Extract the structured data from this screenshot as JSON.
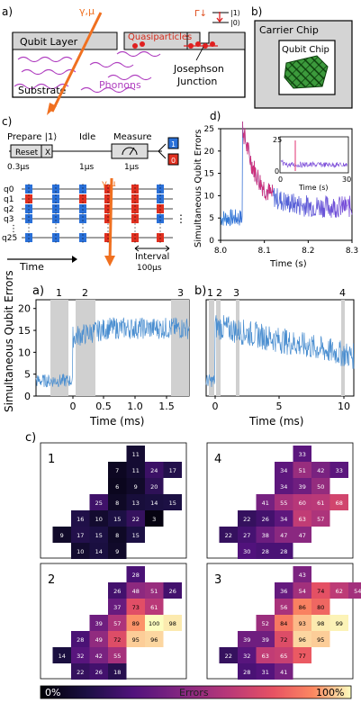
{
  "panel_a": {
    "letter": "a)",
    "source_label": "γ,μ",
    "qubit_layer": "Qubit Layer",
    "substrate": "Substrate",
    "quasiparticles": "Quasiparticles",
    "phonons": "Phonons",
    "junction": [
      "Josephson",
      "Junction"
    ],
    "gamma_down": "Γ↓",
    "level1": "|1⟩",
    "level0": "|0⟩"
  },
  "panel_b": {
    "letter": "b)",
    "carrier": "Carrier Chip",
    "qubit_chip": "Qubit Chip"
  },
  "panel_c": {
    "letter": "c)",
    "steps": [
      "Prepare |1⟩",
      "Idle",
      "Measure"
    ],
    "reset": "Reset",
    "x_gate": "X",
    "times": [
      "0.3μs",
      "1μs",
      "1μs"
    ],
    "out1": "1",
    "out0": "0",
    "source_label": "γ,μ",
    "qubits": [
      "q0",
      "q1",
      "q2",
      "q3",
      "q25"
    ],
    "interval": "Interval",
    "interval_value": "100μs",
    "time": "Time"
  },
  "panel_d": {
    "letter": "d)",
    "ylabel": "Simultaneous Qubit Errors",
    "xlabel": "Time (s)",
    "xticks": [
      "8.0",
      "8.1",
      "8.2",
      "8.3"
    ],
    "yticks": [
      "0",
      "5",
      "10",
      "15",
      "20",
      "25"
    ],
    "inset_xticks": [
      "0",
      "30"
    ],
    "inset_yticks": [
      "0",
      "25"
    ],
    "inset_xlabel": "Time (s)"
  },
  "panel_a2": {
    "letter": "a)",
    "xticks": [
      "0",
      "0.5",
      "1.0",
      "1.5"
    ],
    "yticks": [
      "0",
      "5",
      "10",
      "15",
      "20"
    ],
    "xlabel": "Time (ms)",
    "markers": [
      "1",
      "2",
      "3"
    ]
  },
  "panel_b2": {
    "letter": "b)",
    "xticks": [
      "0",
      "5",
      "10"
    ],
    "xlabel": "Time (ms)",
    "markers": [
      "1",
      "2",
      "3",
      "4"
    ]
  },
  "shared_ylabel": "Simultaneous Qubit Errors",
  "panel_c2": {
    "letter": "c)",
    "maps": [
      {
        "label": "1",
        "cells": [
          [
            0,
            3,
            "11"
          ],
          [
            1,
            2,
            "7"
          ],
          [
            1,
            3,
            "11"
          ],
          [
            1,
            4,
            "24"
          ],
          [
            1,
            5,
            "17"
          ],
          [
            2,
            2,
            "6"
          ],
          [
            2,
            3,
            "9"
          ],
          [
            2,
            4,
            "20"
          ],
          [
            3,
            1,
            "25"
          ],
          [
            3,
            2,
            "8"
          ],
          [
            3,
            3,
            "13"
          ],
          [
            3,
            4,
            "14"
          ],
          [
            3,
            5,
            "15"
          ],
          [
            4,
            0,
            "16"
          ],
          [
            4,
            1,
            "10"
          ],
          [
            4,
            2,
            "15"
          ],
          [
            4,
            3,
            "22"
          ],
          [
            4,
            4,
            "3"
          ],
          [
            5,
            -1,
            "9"
          ],
          [
            5,
            0,
            "17"
          ],
          [
            5,
            1,
            "15"
          ],
          [
            5,
            2,
            "8"
          ],
          [
            5,
            3,
            "15"
          ],
          [
            6,
            0,
            "10"
          ],
          [
            6,
            1,
            "14"
          ],
          [
            6,
            2,
            "9"
          ]
        ]
      },
      {
        "label": "4",
        "cells": [
          [
            0,
            3,
            "33"
          ],
          [
            1,
            2,
            "34"
          ],
          [
            1,
            3,
            "51"
          ],
          [
            1,
            4,
            "42"
          ],
          [
            1,
            5,
            "33"
          ],
          [
            2,
            2,
            "34"
          ],
          [
            2,
            3,
            "39"
          ],
          [
            2,
            4,
            "50"
          ],
          [
            3,
            1,
            "41"
          ],
          [
            3,
            2,
            "55"
          ],
          [
            3,
            3,
            "60"
          ],
          [
            3,
            4,
            "61"
          ],
          [
            3,
            5,
            "68"
          ],
          [
            4,
            0,
            "22"
          ],
          [
            4,
            1,
            "26"
          ],
          [
            4,
            2,
            "34"
          ],
          [
            4,
            3,
            "63"
          ],
          [
            4,
            4,
            "57"
          ],
          [
            5,
            -1,
            "22"
          ],
          [
            5,
            0,
            "27"
          ],
          [
            5,
            1,
            "38"
          ],
          [
            5,
            2,
            "47"
          ],
          [
            5,
            3,
            "47"
          ],
          [
            6,
            0,
            "30"
          ],
          [
            6,
            1,
            "28"
          ],
          [
            6,
            2,
            "28"
          ]
        ]
      },
      {
        "label": "2",
        "cells": [
          [
            0,
            3,
            "28"
          ],
          [
            1,
            2,
            "26"
          ],
          [
            1,
            3,
            "48"
          ],
          [
            1,
            4,
            "51"
          ],
          [
            1,
            5,
            "26"
          ],
          [
            2,
            2,
            "37"
          ],
          [
            2,
            3,
            "73"
          ],
          [
            2,
            4,
            "61"
          ],
          [
            3,
            1,
            "39"
          ],
          [
            3,
            2,
            "57"
          ],
          [
            3,
            3,
            "89"
          ],
          [
            3,
            4,
            "100"
          ],
          [
            3,
            5,
            "98"
          ],
          [
            4,
            0,
            "28"
          ],
          [
            4,
            1,
            "49"
          ],
          [
            4,
            2,
            "72"
          ],
          [
            4,
            3,
            "95"
          ],
          [
            4,
            4,
            "96"
          ],
          [
            5,
            -1,
            "14"
          ],
          [
            5,
            0,
            "32"
          ],
          [
            5,
            1,
            "42"
          ],
          [
            5,
            2,
            "55"
          ],
          [
            6,
            0,
            "22"
          ],
          [
            6,
            1,
            "26"
          ],
          [
            6,
            2,
            "18"
          ]
        ]
      },
      {
        "label": "3",
        "cells": [
          [
            0,
            3,
            "43"
          ],
          [
            1,
            2,
            "36"
          ],
          [
            1,
            3,
            "54"
          ],
          [
            1,
            4,
            "74"
          ],
          [
            1,
            5,
            "62"
          ],
          [
            1,
            6,
            "54"
          ],
          [
            2,
            2,
            "56"
          ],
          [
            2,
            3,
            "86"
          ],
          [
            2,
            4,
            "80"
          ],
          [
            3,
            1,
            "52"
          ],
          [
            3,
            2,
            "84"
          ],
          [
            3,
            3,
            "93"
          ],
          [
            3,
            4,
            "98"
          ],
          [
            3,
            5,
            "99"
          ],
          [
            4,
            0,
            "39"
          ],
          [
            4,
            1,
            "39"
          ],
          [
            4,
            2,
            "72"
          ],
          [
            4,
            3,
            "96"
          ],
          [
            4,
            4,
            "95"
          ],
          [
            5,
            -1,
            "22"
          ],
          [
            5,
            0,
            "32"
          ],
          [
            5,
            1,
            "63"
          ],
          [
            5,
            2,
            "65"
          ],
          [
            5,
            3,
            "77"
          ],
          [
            6,
            0,
            "28"
          ],
          [
            6,
            1,
            "31"
          ],
          [
            6,
            2,
            "41"
          ]
        ]
      }
    ]
  },
  "colorbar": {
    "left": "0%",
    "middle": "Errors",
    "right": "100%"
  }
}
